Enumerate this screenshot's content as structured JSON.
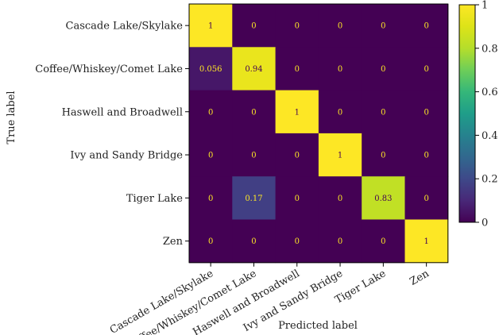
{
  "chart_data": {
    "type": "heatmap",
    "title": "",
    "xlabel": "Predicted label",
    "ylabel": "True label",
    "x_categories": [
      "Cascade Lake/Skylake",
      "Coffee/Whiskey/Comet Lake",
      "Haswell and Broadwell",
      "Ivy and Sandy Bridge",
      "Tiger Lake",
      "Zen"
    ],
    "y_categories": [
      "Cascade Lake/Skylake",
      "Coffee/Whiskey/Comet Lake",
      "Haswell and Broadwell",
      "Ivy and Sandy Bridge",
      "Tiger Lake",
      "Zen"
    ],
    "values": [
      [
        1,
        0,
        0,
        0,
        0,
        0
      ],
      [
        0.056,
        0.94,
        0,
        0,
        0,
        0
      ],
      [
        0,
        0,
        1,
        0,
        0,
        0
      ],
      [
        0,
        0,
        0,
        1,
        0,
        0
      ],
      [
        0,
        0.17,
        0,
        0,
        0.83,
        0
      ],
      [
        0,
        0,
        0,
        0,
        0,
        1
      ]
    ],
    "cell_labels": [
      [
        "1",
        "0",
        "0",
        "0",
        "0",
        "0"
      ],
      [
        "0.056",
        "0.94",
        "0",
        "0",
        "0",
        "0"
      ],
      [
        "0",
        "0",
        "1",
        "0",
        "0",
        "0"
      ],
      [
        "0",
        "0",
        "0",
        "1",
        "0",
        "0"
      ],
      [
        "0",
        "0.17",
        "0",
        "0",
        "0.83",
        "0"
      ],
      [
        "0",
        "0",
        "0",
        "0",
        "0",
        "1"
      ]
    ],
    "colormap": "viridis",
    "colorbar": {
      "range": [
        0,
        1
      ],
      "ticks": [
        0,
        0.2,
        0.4,
        0.6,
        0.8,
        1
      ],
      "tick_labels": [
        "0",
        "0.2",
        "0.4",
        "0.6",
        "0.8",
        "1"
      ]
    },
    "colors": {
      "low_text": "#fde725",
      "high_text": "#440154"
    }
  }
}
